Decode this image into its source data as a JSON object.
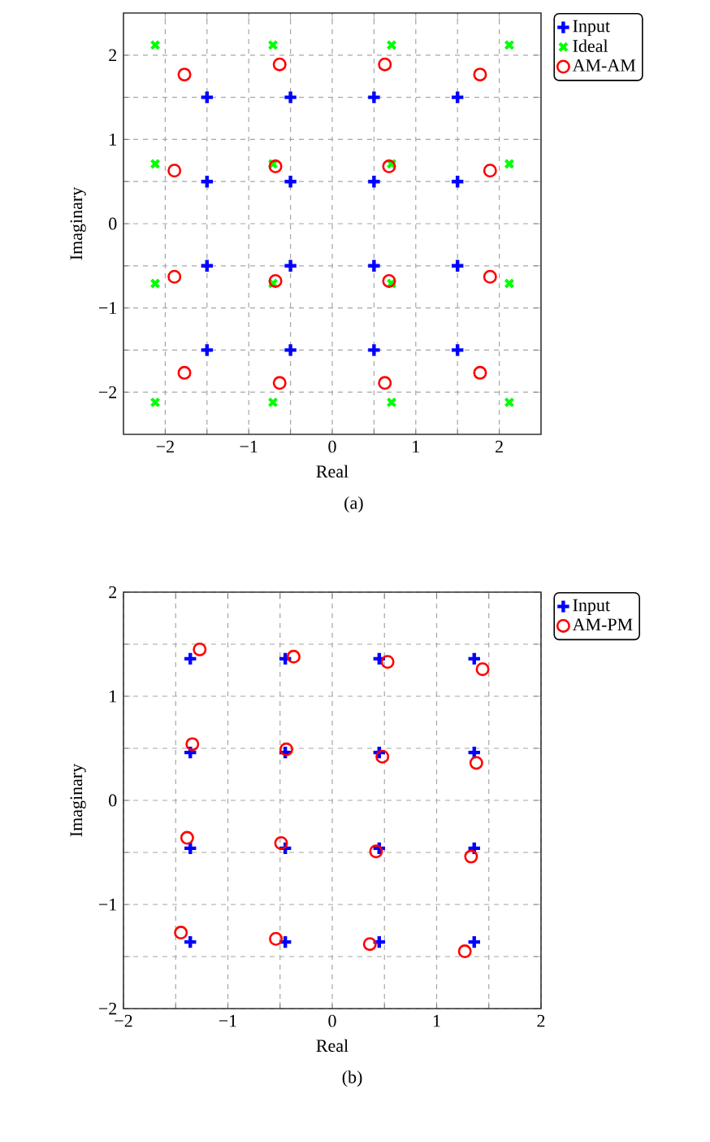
{
  "chart_data": [
    {
      "type": "scatter",
      "xlabel": "Real",
      "ylabel": "Imaginary",
      "annotations": [
        "(a)"
      ],
      "grid": true,
      "legend": "top right",
      "xlim": [
        -2.5,
        2.5
      ],
      "ylim": [
        -2.5,
        2.5
      ],
      "xticks": [
        {
          "value": -2,
          "label": "−2"
        },
        {
          "value": -1.5,
          "label": null
        },
        {
          "value": -1,
          "label": "−1"
        },
        {
          "value": -0.5,
          "label": null
        },
        0,
        {
          "value": 0.5,
          "label": null
        },
        1,
        {
          "value": 1.5,
          "label": null
        },
        2
      ],
      "yticks": [
        {
          "value": -2,
          "label": "−2"
        },
        {
          "value": -1.5,
          "label": null
        },
        {
          "value": -1,
          "label": "−1"
        },
        {
          "value": -0.5,
          "label": null
        },
        0,
        {
          "value": 0.5,
          "label": null
        },
        1,
        {
          "value": 1.5,
          "label": null
        },
        2
      ],
      "series": [
        {
          "name": "Input",
          "color": "#0000ff",
          "marker": "plus",
          "x": [
            -1.5,
            -0.5,
            0.5,
            1.5,
            -1.5,
            -0.5,
            0.5,
            1.5,
            -1.5,
            -0.5,
            0.5,
            1.5,
            -1.5,
            -0.5,
            0.5,
            1.5
          ],
          "values": [
            1.5,
            1.5,
            1.5,
            1.5,
            0.5,
            0.5,
            0.5,
            0.5,
            -0.5,
            -0.5,
            -0.5,
            -0.5,
            -1.5,
            -1.5,
            -1.5,
            -1.5
          ]
        },
        {
          "name": "Ideal",
          "color": "#00ff00",
          "marker": "cross",
          "x": [
            -2.12,
            -0.71,
            0.71,
            2.12,
            -2.12,
            -0.71,
            0.71,
            2.12,
            -2.12,
            -0.71,
            0.71,
            2.12,
            -2.12,
            -0.71,
            0.71,
            2.12
          ],
          "values": [
            2.12,
            2.12,
            2.12,
            2.12,
            0.71,
            0.71,
            0.71,
            0.71,
            -0.71,
            -0.71,
            -0.71,
            -0.71,
            -2.12,
            -2.12,
            -2.12,
            -2.12
          ]
        },
        {
          "name": "AM-AM",
          "color": "#ff0000",
          "marker": "circle",
          "x": [
            -1.77,
            -0.63,
            0.63,
            1.77,
            -1.89,
            -0.68,
            0.68,
            1.89,
            -1.89,
            -0.68,
            0.68,
            1.89,
            -1.77,
            -0.63,
            0.63,
            1.77
          ],
          "values": [
            1.77,
            1.89,
            1.89,
            1.77,
            0.63,
            0.68,
            0.68,
            0.63,
            -0.63,
            -0.68,
            -0.68,
            -0.63,
            -1.77,
            -1.89,
            -1.89,
            -1.77
          ]
        }
      ]
    },
    {
      "type": "scatter",
      "xlabel": "Real",
      "ylabel": "Imaginary",
      "annotations": [
        "(b)"
      ],
      "grid": true,
      "legend": "top right",
      "xlim": [
        -2,
        2
      ],
      "ylim": [
        -2,
        2
      ],
      "xticks": [
        {
          "value": -2,
          "label": "−2"
        },
        {
          "value": -1.5,
          "label": null
        },
        {
          "value": -1,
          "label": "−1"
        },
        {
          "value": -0.5,
          "label": null
        },
        0,
        {
          "value": 0.5,
          "label": null
        },
        1,
        {
          "value": 1.5,
          "label": null
        },
        2
      ],
      "yticks": [
        {
          "value": -2,
          "label": "−2"
        },
        {
          "value": -1.5,
          "label": null
        },
        {
          "value": -1,
          "label": "−1"
        },
        {
          "value": -0.5,
          "label": null
        },
        0,
        {
          "value": 0.5,
          "label": null
        },
        1,
        {
          "value": 1.5,
          "label": null
        },
        2
      ],
      "series": [
        {
          "name": "Input",
          "color": "#0000ff",
          "marker": "plus",
          "x": [
            -1.36,
            -0.45,
            0.45,
            1.36,
            -1.36,
            -0.45,
            0.45,
            1.36,
            -1.36,
            -0.45,
            0.45,
            1.36,
            -1.36,
            -0.45,
            0.45,
            1.36
          ],
          "values": [
            1.36,
            1.36,
            1.36,
            1.36,
            0.46,
            0.46,
            0.46,
            0.46,
            -0.46,
            -0.46,
            -0.46,
            -0.46,
            -1.36,
            -1.36,
            -1.36,
            -1.36
          ]
        },
        {
          "name": "AM-PM",
          "color": "#ff0000",
          "marker": "circle",
          "x": [
            -1.27,
            -0.37,
            0.53,
            1.44,
            -1.34,
            -0.44,
            0.48,
            1.38,
            -1.39,
            -0.49,
            0.42,
            1.33,
            -1.45,
            -0.54,
            0.36,
            1.27
          ],
          "values": [
            1.45,
            1.38,
            1.33,
            1.26,
            0.54,
            0.49,
            0.42,
            0.36,
            -0.36,
            -0.41,
            -0.49,
            -0.54,
            -1.27,
            -1.33,
            -1.38,
            -1.45
          ]
        }
      ]
    }
  ]
}
